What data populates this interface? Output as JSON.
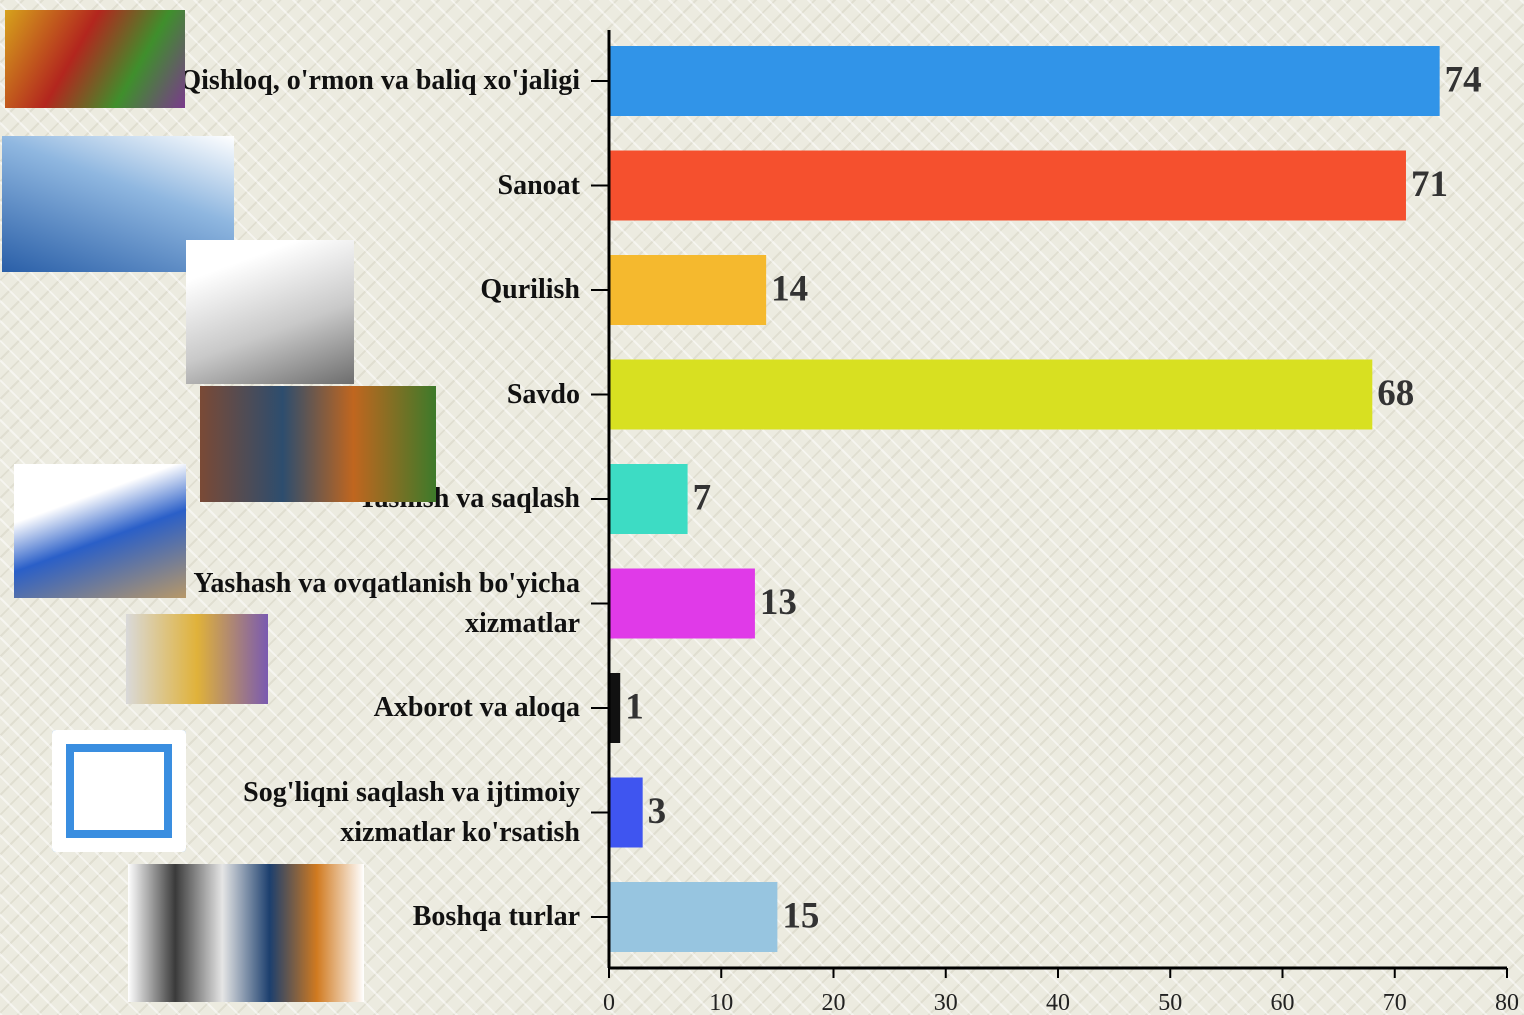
{
  "chart_data": {
    "type": "bar",
    "orientation": "horizontal",
    "categories": [
      "Qishloq, o'rmon va baliq xo'jaligi",
      "Sanoat",
      "Qurilish",
      "Savdo",
      "Tashish va saqlash",
      "Yashash va ovqatlanish bo'yicha xizmatlar",
      "Axborot va aloqa",
      "Sog'liqni saqlash va ijtimoiy xizmatlar ko'rsatish",
      "Boshqa turlar"
    ],
    "values": [
      74,
      71,
      14,
      68,
      7,
      13,
      1,
      3,
      15
    ],
    "colors": [
      "#3194e8",
      "#f5502e",
      "#f5b92e",
      "#d8e021",
      "#3ddcc4",
      "#e03ae8",
      "#111111",
      "#3f55f0",
      "#97c5e0"
    ],
    "xlim": [
      0,
      80
    ],
    "xticks": [
      0,
      10,
      20,
      30,
      40,
      50,
      60,
      70,
      80
    ]
  }
}
